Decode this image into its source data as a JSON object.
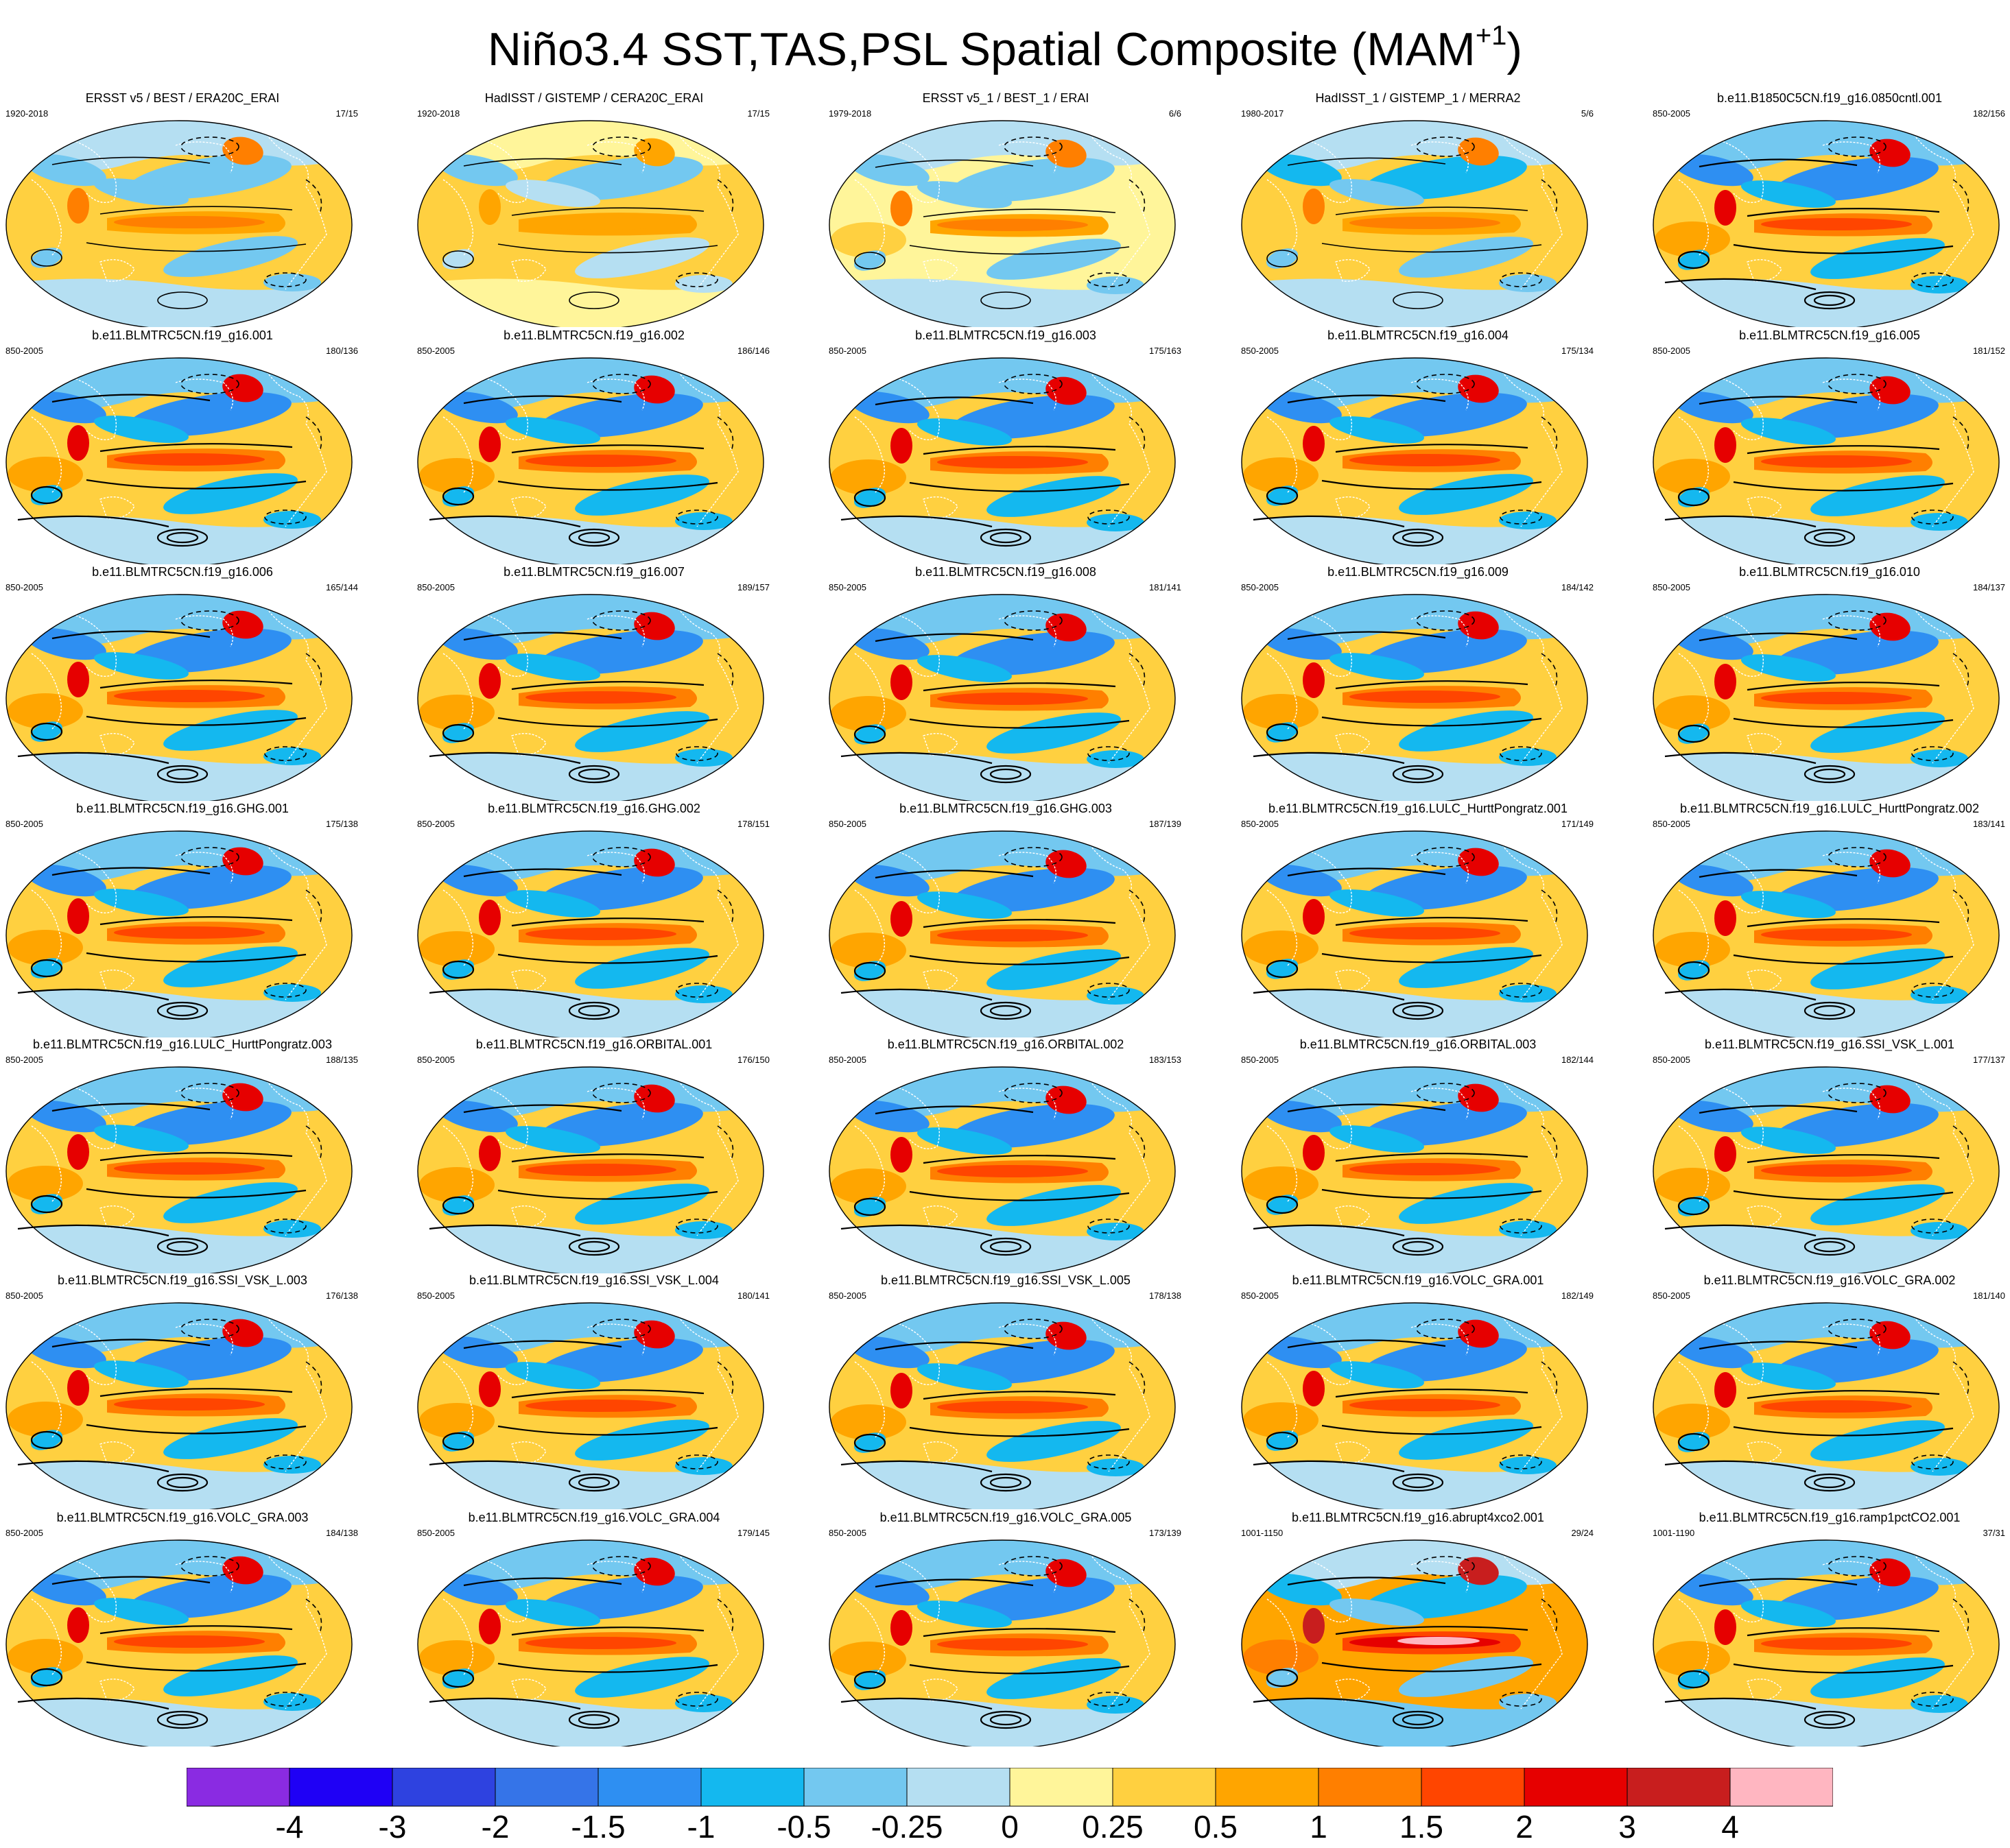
{
  "title": {
    "main": "Niño3.4 SST,TAS,PSL Spatial Composite (MAM",
    "superscript": "+1",
    "closing": ")"
  },
  "panels": [
    {
      "title": "ERSST v5 / BEST / ERA20C_ERAI",
      "years": "1920-2018",
      "count": "17/15",
      "style": "obs1"
    },
    {
      "title": "HadISST / GISTEMP / CERA20C_ERAI",
      "years": "1920-2018",
      "count": "17/15",
      "style": "obs2"
    },
    {
      "title": "ERSST v5_1 / BEST_1 / ERAI",
      "years": "1979-2018",
      "count": "6/6",
      "style": "obs3"
    },
    {
      "title": "HadISST_1 / GISTEMP_1 / MERRA2",
      "years": "1980-2017",
      "count": "5/6",
      "style": "obs4"
    },
    {
      "title": "b.e11.B1850C5CN.f19_g16.0850cntl.001",
      "years": "850-2005",
      "count": "182/156",
      "style": "model"
    },
    {
      "title": "b.e11.BLMTRC5CN.f19_g16.001",
      "years": "850-2005",
      "count": "180/136",
      "style": "model"
    },
    {
      "title": "b.e11.BLMTRC5CN.f19_g16.002",
      "years": "850-2005",
      "count": "186/146",
      "style": "model"
    },
    {
      "title": "b.e11.BLMTRC5CN.f19_g16.003",
      "years": "850-2005",
      "count": "175/163",
      "style": "model"
    },
    {
      "title": "b.e11.BLMTRC5CN.f19_g16.004",
      "years": "850-2005",
      "count": "175/134",
      "style": "model"
    },
    {
      "title": "b.e11.BLMTRC5CN.f19_g16.005",
      "years": "850-2005",
      "count": "181/152",
      "style": "model"
    },
    {
      "title": "b.e11.BLMTRC5CN.f19_g16.006",
      "years": "850-2005",
      "count": "165/144",
      "style": "model"
    },
    {
      "title": "b.e11.BLMTRC5CN.f19_g16.007",
      "years": "850-2005",
      "count": "189/157",
      "style": "model"
    },
    {
      "title": "b.e11.BLMTRC5CN.f19_g16.008",
      "years": "850-2005",
      "count": "181/141",
      "style": "model"
    },
    {
      "title": "b.e11.BLMTRC5CN.f19_g16.009",
      "years": "850-2005",
      "count": "184/142",
      "style": "model"
    },
    {
      "title": "b.e11.BLMTRC5CN.f19_g16.010",
      "years": "850-2005",
      "count": "184/137",
      "style": "model"
    },
    {
      "title": "b.e11.BLMTRC5CN.f19_g16.GHG.001",
      "years": "850-2005",
      "count": "175/138",
      "style": "model"
    },
    {
      "title": "b.e11.BLMTRC5CN.f19_g16.GHG.002",
      "years": "850-2005",
      "count": "178/151",
      "style": "model"
    },
    {
      "title": "b.e11.BLMTRC5CN.f19_g16.GHG.003",
      "years": "850-2005",
      "count": "187/139",
      "style": "model"
    },
    {
      "title": "b.e11.BLMTRC5CN.f19_g16.LULC_HurttPongratz.001",
      "years": "850-2005",
      "count": "171/149",
      "style": "model"
    },
    {
      "title": "b.e11.BLMTRC5CN.f19_g16.LULC_HurttPongratz.002",
      "years": "850-2005",
      "count": "183/141",
      "style": "model"
    },
    {
      "title": "b.e11.BLMTRC5CN.f19_g16.LULC_HurttPongratz.003",
      "years": "850-2005",
      "count": "188/135",
      "style": "model"
    },
    {
      "title": "b.e11.BLMTRC5CN.f19_g16.ORBITAL.001",
      "years": "850-2005",
      "count": "176/150",
      "style": "model"
    },
    {
      "title": "b.e11.BLMTRC5CN.f19_g16.ORBITAL.002",
      "years": "850-2005",
      "count": "183/153",
      "style": "model"
    },
    {
      "title": "b.e11.BLMTRC5CN.f19_g16.ORBITAL.003",
      "years": "850-2005",
      "count": "182/144",
      "style": "model"
    },
    {
      "title": "b.e11.BLMTRC5CN.f19_g16.SSI_VSK_L.001",
      "years": "850-2005",
      "count": "177/137",
      "style": "model"
    },
    {
      "title": "b.e11.BLMTRC5CN.f19_g16.SSI_VSK_L.003",
      "years": "850-2005",
      "count": "176/138",
      "style": "model"
    },
    {
      "title": "b.e11.BLMTRC5CN.f19_g16.SSI_VSK_L.004",
      "years": "850-2005",
      "count": "180/141",
      "style": "model"
    },
    {
      "title": "b.e11.BLMTRC5CN.f19_g16.SSI_VSK_L.005",
      "years": "850-2005",
      "count": "178/138",
      "style": "model"
    },
    {
      "title": "b.e11.BLMTRC5CN.f19_g16.VOLC_GRA.001",
      "years": "850-2005",
      "count": "182/149",
      "style": "model"
    },
    {
      "title": "b.e11.BLMTRC5CN.f19_g16.VOLC_GRA.002",
      "years": "850-2005",
      "count": "181/140",
      "style": "model"
    },
    {
      "title": "b.e11.BLMTRC5CN.f19_g16.VOLC_GRA.003",
      "years": "850-2005",
      "count": "184/138",
      "style": "model"
    },
    {
      "title": "b.e11.BLMTRC5CN.f19_g16.VOLC_GRA.004",
      "years": "850-2005",
      "count": "179/145",
      "style": "model"
    },
    {
      "title": "b.e11.BLMTRC5CN.f19_g16.VOLC_GRA.005",
      "years": "850-2005",
      "count": "173/139",
      "style": "model"
    },
    {
      "title": "b.e11.BLMTRC5CN.f19_g16.abrupt4xco2.001",
      "years": "1001-1150",
      "count": "29/24",
      "style": "abrupt"
    },
    {
      "title": "b.e11.BLMTRC5CN.f19_g16.ramp1pctCO2.001",
      "years": "1001-1190",
      "count": "37/31",
      "style": "ramp"
    }
  ],
  "chart_data": {
    "type": "heatmap",
    "projection": "robinson-like global map panels, 5 columns x 7 rows",
    "fields": [
      "SST",
      "TAS",
      "PSL"
    ],
    "season": "MAM+1",
    "colorbar": {
      "tick_labels": [
        "-4",
        "-3",
        "-2",
        "-1.5",
        "-1",
        "-0.5",
        "-0.25",
        "0",
        "0.25",
        "0.5",
        "1",
        "1.5",
        "2",
        "3",
        "4"
      ],
      "colors": [
        "#8a2be2",
        "#1f00f5",
        "#2e42e0",
        "#3574e8",
        "#2e8ff2",
        "#14b8ef",
        "#73c8f0",
        "#b5dff2",
        "#fff59a",
        "#ffd040",
        "#ffa500",
        "#ff7f00",
        "#ff4500",
        "#e60000",
        "#c81e1e",
        "#ffb6c1"
      ]
    }
  }
}
